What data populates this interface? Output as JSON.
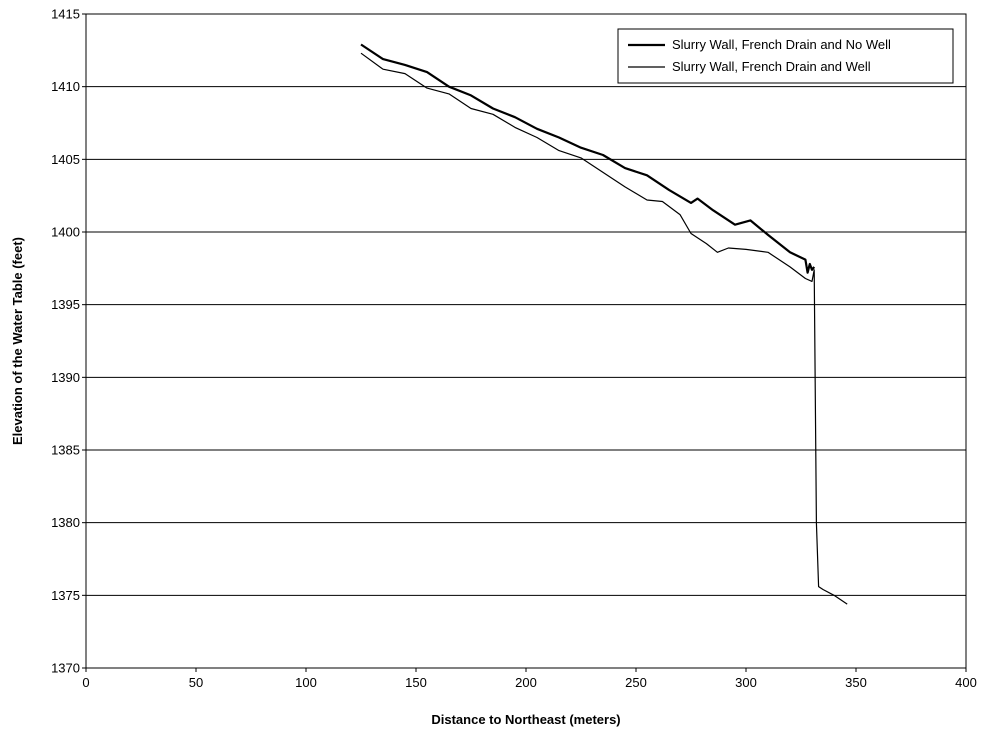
{
  "chart_data": {
    "type": "line",
    "title": "",
    "xlabel": "Distance to Northeast (meters)",
    "ylabel": "Elevation of the Water Table (feet)",
    "xlim": [
      0,
      400
    ],
    "ylim": [
      1370,
      1415
    ],
    "xticks": [
      "0",
      "50",
      "100",
      "150",
      "200",
      "250",
      "300",
      "350",
      "400"
    ],
    "yticks": [
      "1370",
      "1375",
      "1380",
      "1385",
      "1390",
      "1395",
      "1400",
      "1405",
      "1410",
      "1415"
    ],
    "grid": "horizontal",
    "legend_position": "top-right",
    "series": [
      {
        "name": "Slurry Wall, French Drain and No Well",
        "color": "#000000",
        "x": [
          125,
          135,
          145,
          155,
          165,
          175,
          185,
          195,
          205,
          215,
          225,
          235,
          245,
          255,
          265,
          275,
          278,
          285,
          295,
          302,
          310,
          320,
          327,
          328,
          329,
          330,
          331
        ],
        "y": [
          1412.9,
          1411.9,
          1411.5,
          1411.0,
          1410.0,
          1409.4,
          1408.5,
          1407.9,
          1407.1,
          1406.5,
          1405.8,
          1405.3,
          1404.4,
          1403.9,
          1402.9,
          1402.0,
          1402.3,
          1401.5,
          1400.5,
          1400.8,
          1399.8,
          1398.6,
          1398.1,
          1397.2,
          1397.8,
          1397.4,
          1397.6
        ]
      },
      {
        "name": "Slurry Wall, French Drain and Well",
        "color": "#000000",
        "x": [
          125,
          135,
          145,
          155,
          165,
          175,
          185,
          195,
          205,
          215,
          225,
          235,
          245,
          255,
          262,
          270,
          275,
          282,
          287,
          292,
          300,
          310,
          320,
          327,
          330,
          331,
          332,
          333,
          335,
          340,
          346
        ],
        "y": [
          1412.3,
          1411.2,
          1410.9,
          1409.9,
          1409.5,
          1408.5,
          1408.1,
          1407.2,
          1406.5,
          1405.6,
          1405.1,
          1404.1,
          1403.1,
          1402.2,
          1402.1,
          1401.2,
          1399.9,
          1399.2,
          1398.6,
          1398.9,
          1398.8,
          1398.6,
          1397.6,
          1396.8,
          1396.6,
          1397.4,
          1380.0,
          1375.6,
          1375.4,
          1375.0,
          1374.4
        ]
      }
    ]
  }
}
